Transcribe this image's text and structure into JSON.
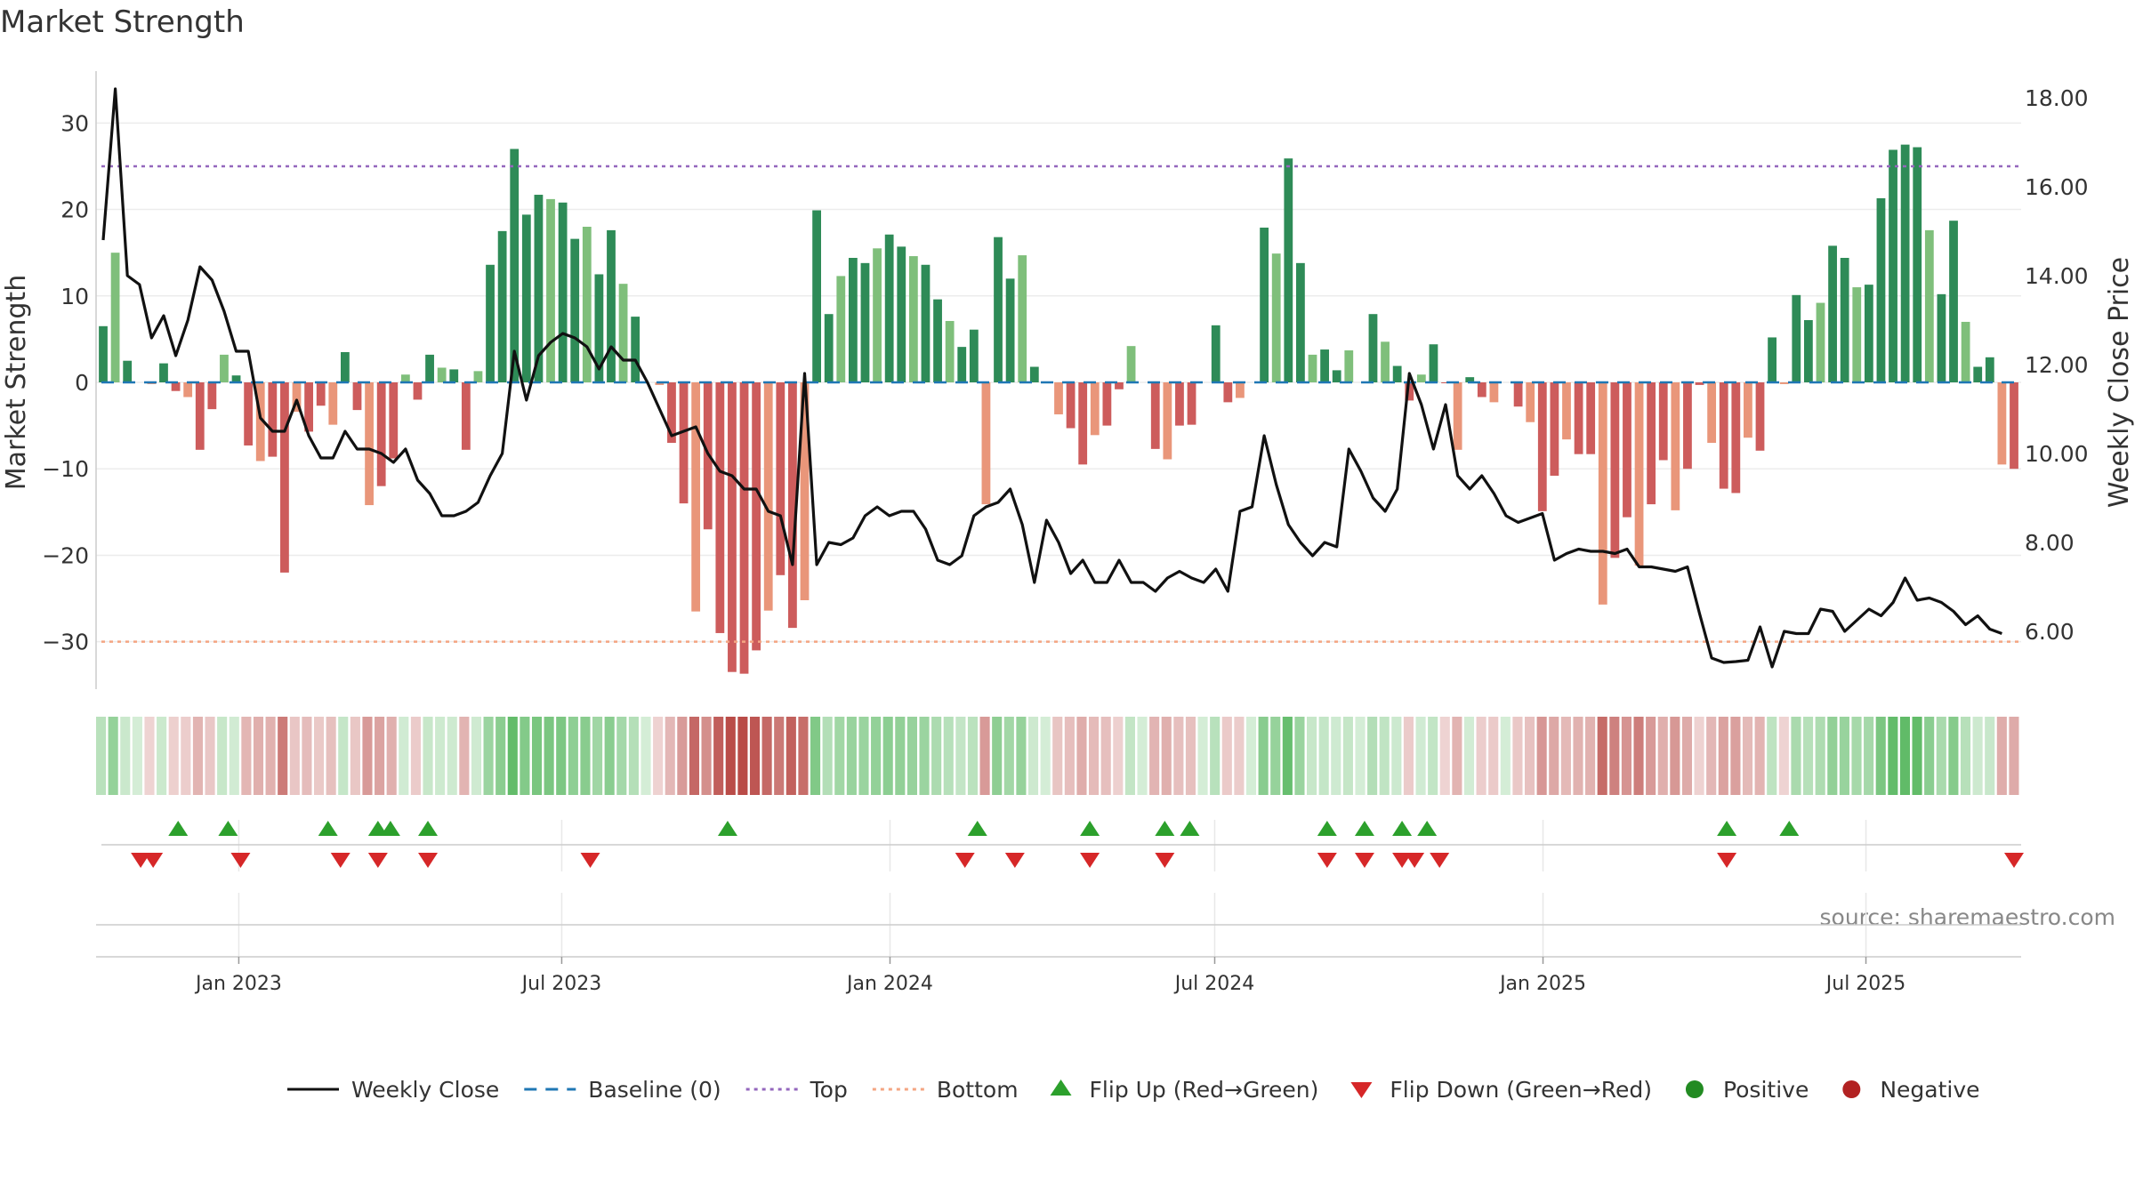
{
  "chart_data": {
    "type": "bar",
    "title": "Market Strength",
    "ylabel": "Market Strength",
    "y2label": "Weekly Close Price",
    "ylim": [
      -36,
      36
    ],
    "y2lim": [
      4.6,
      18.6
    ],
    "yticks": [
      30,
      20,
      10,
      0,
      -10,
      -20,
      -30
    ],
    "y2ticks": [
      18,
      16,
      14,
      12,
      10,
      8,
      6
    ],
    "top_line": 25,
    "bottom_line": -30,
    "x_start": "2022-10-17",
    "x_end": "2025-09-22",
    "date_ticks": [
      {
        "date": "2023-01-01",
        "label": "Jan 2023"
      },
      {
        "date": "2023-07-01",
        "label": "Jul 2023"
      },
      {
        "date": "2024-01-01",
        "label": "Jan 2024"
      },
      {
        "date": "2024-07-01",
        "label": "Jul 2024"
      },
      {
        "date": "2025-01-01",
        "label": "Jan 2025"
      },
      {
        "date": "2025-07-01",
        "label": "Jul 2025"
      }
    ],
    "strength": [
      6.5,
      15,
      2.5,
      0,
      -0.2,
      2.2,
      -1,
      -1.7,
      -7.8,
      -3.1,
      3.2,
      0.8,
      -7.3,
      -9.1,
      -8.6,
      -22,
      -3.4,
      -5.7,
      -2.7,
      -4.9,
      3.5,
      -3.2,
      -14.2,
      -12,
      -8.8,
      0.9,
      -2,
      3.2,
      1.7,
      1.5,
      -7.8,
      1.3,
      13.6,
      17.5,
      27,
      19.4,
      21.7,
      21.2,
      20.8,
      16.6,
      18,
      12.5,
      17.6,
      11.4,
      7.6,
      0,
      -0.3,
      -7,
      -14,
      -26.5,
      -17,
      -29,
      -33.5,
      -33.7,
      -31,
      -26.4,
      -22.3,
      -28.4,
      -25.2,
      19.9,
      7.9,
      12.3,
      14.4,
      13.8,
      15.5,
      17.1,
      15.7,
      14.6,
      13.6,
      9.6,
      7.1,
      4.1,
      6.1,
      -14.1,
      16.8,
      12,
      14.7,
      1.8,
      0,
      -3.7,
      -5.3,
      -9.5,
      -6.1,
      -5,
      -0.8,
      4.2,
      0,
      -7.7,
      -8.9,
      -5,
      -4.9,
      0,
      6.6,
      -2.3,
      -1.8,
      0,
      17.9,
      14.9,
      25.9,
      13.8,
      3.2,
      3.8,
      1.4,
      3.7,
      0,
      7.9,
      4.7,
      1.9,
      -2.1,
      0.9,
      4.4,
      -0.1,
      -7.8,
      0.6,
      -1.7,
      -2.3,
      0,
      -2.8,
      -4.6,
      -14.9,
      -10.8,
      -6.6,
      -8.3,
      -8.3,
      -25.7,
      -20.3,
      -15.6,
      -21.2,
      -14.1,
      -9,
      -14.8,
      -10,
      -0.3,
      -7,
      -12.3,
      -12.8,
      -6.4,
      -7.9,
      5.2,
      -0.2,
      10.1,
      7.2,
      9.2,
      15.8,
      14.4,
      11,
      11.3,
      21.3,
      26.9,
      27.5,
      27.2,
      17.6,
      10.2,
      18.7,
      7,
      1.8,
      2.9,
      -9.5,
      -10
    ],
    "price": [
      14.8,
      18.2,
      14,
      13.8,
      12.6,
      13.1,
      12.2,
      13,
      14.2,
      13.9,
      13.2,
      12.3,
      12.3,
      10.8,
      10.5,
      10.5,
      11.2,
      10.4,
      9.9,
      9.9,
      10.5,
      10.1,
      10.1,
      10,
      9.8,
      10.1,
      9.4,
      9.1,
      8.6,
      8.6,
      8.7,
      8.9,
      9.5,
      10,
      12.3,
      11.2,
      12.2,
      12.5,
      12.7,
      12.6,
      12.4,
      11.9,
      12.4,
      12.1,
      12.1,
      11.6,
      11,
      10.4,
      10.5,
      10.6,
      10,
      9.6,
      9.5,
      9.2,
      9.2,
      8.7,
      8.6,
      7.5,
      11.8,
      7.5,
      8,
      7.95,
      8.1,
      8.6,
      8.8,
      8.6,
      8.7,
      8.7,
      8.3,
      7.6,
      7.5,
      7.7,
      8.6,
      8.8,
      8.9,
      9.2,
      8.4,
      7.1,
      8.5,
      8,
      7.3,
      7.6,
      7.1,
      7.1,
      7.6,
      7.1,
      7.1,
      6.9,
      7.2,
      7.35,
      7.2,
      7.1,
      7.4,
      6.9,
      8.7,
      8.8,
      10.4,
      9.3,
      8.4,
      8,
      7.7,
      8,
      7.9,
      10.1,
      9.6,
      9,
      8.7,
      9.2,
      11.8,
      11.1,
      10.1,
      11.1,
      9.5,
      9.2,
      9.5,
      9.1,
      8.6,
      8.45,
      8.55,
      8.65,
      7.6,
      7.75,
      7.85,
      7.8,
      7.8,
      7.75,
      7.85,
      7.45,
      7.45,
      7.4,
      7.35,
      7.45,
      6.4,
      5.4,
      5.3,
      5.32,
      5.35,
      6.1,
      5.2,
      6,
      5.95,
      5.95,
      6.5,
      6.45,
      6,
      6.25,
      6.5,
      6.35,
      6.65,
      7.2,
      6.7,
      6.75,
      6.65,
      6.45,
      6.15,
      6.35,
      6.05,
      5.95
    ],
    "flips_up": [
      "2022-11-28",
      "2022-12-26",
      "2023-02-20",
      "2023-03-20",
      "2023-03-27",
      "2023-04-17",
      "2023-10-02",
      "2024-02-19",
      "2024-04-22",
      "2024-06-03",
      "2024-06-17",
      "2024-09-02",
      "2024-09-23",
      "2024-10-14",
      "2024-10-28",
      "2025-04-14",
      "2025-05-19"
    ],
    "flips_down": [
      "2022-11-07",
      "2022-11-14",
      "2023-01-02",
      "2023-02-27",
      "2023-03-20",
      "2023-04-17",
      "2023-07-17",
      "2024-02-12",
      "2024-03-11",
      "2024-04-22",
      "2024-06-03",
      "2024-09-02",
      "2024-09-23",
      "2024-10-14",
      "2024-10-21",
      "2024-11-04",
      "2025-04-14",
      "2025-09-22"
    ],
    "legend": [
      {
        "label": "Weekly Close",
        "kind": "line",
        "color": "#111111"
      },
      {
        "label": "Baseline (0)",
        "kind": "dash",
        "color": "#1f77b4"
      },
      {
        "label": "Top",
        "kind": "dot",
        "color": "#9467bd"
      },
      {
        "label": "Bottom",
        "kind": "dot",
        "color": "#f4a582"
      },
      {
        "label": "Flip Up (Red→Green)",
        "kind": "tri-up",
        "color": "#2ca02c"
      },
      {
        "label": "Flip Down (Green→Red)",
        "kind": "tri-down",
        "color": "#d62728"
      },
      {
        "label": "Positive",
        "kind": "circle",
        "color": "#228b22"
      },
      {
        "label": "Negative",
        "kind": "circle",
        "color": "#b22222"
      }
    ],
    "source": "source: sharemaestro.com",
    "colors": {
      "pos_strong": "#2e8b57",
      "pos_light": "#7fbf7b",
      "neg_strong": "#cd5c5c",
      "neg_light": "#e9967a",
      "price_line": "#111111",
      "baseline": "#1f77b4",
      "top": "#9467bd",
      "bottom": "#f4a582"
    }
  }
}
